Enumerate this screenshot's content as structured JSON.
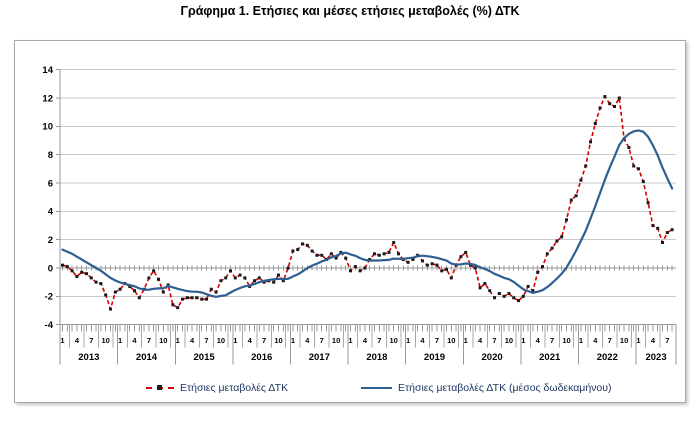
{
  "page": {
    "title": "Γράφημα 1. Ετήσιες και μέσες ετήσιες μεταβολές (%) ΔΤΚ"
  },
  "chart_data": {
    "type": "line",
    "title": "Γράφημα 1. Ετήσιες και μέσες ετήσιες μεταβολές (%) ΔΤΚ",
    "x_axis": {
      "start": "2013-01",
      "end": "2023-08",
      "years": [
        "2013",
        "2014",
        "2015",
        "2016",
        "2017",
        "2018",
        "2019",
        "2020",
        "2021",
        "2022",
        "2023"
      ],
      "month_tick_labels": [
        "1",
        "4",
        "7",
        "10"
      ],
      "months_per_year": 12
    },
    "y_axis": {
      "min": -4,
      "max": 14,
      "step": 2
    },
    "grid": true,
    "legend_position": "bottom",
    "colors": {
      "annual_line": "#d40000",
      "annual_marker": "#1a1a1a",
      "average_line": "#2e5f92",
      "gridline": "#c9c9c9",
      "axis": "#9a9a9a",
      "separator": "#a8a8a8",
      "label_text": "#000000",
      "legend_text": "#1f3864"
    },
    "series": [
      {
        "name": "Ετήσιες μεταβολές ΔΤΚ",
        "line_style": "dashed",
        "marker": "square",
        "values": [
          0.2,
          0.1,
          -0.2,
          -0.6,
          -0.3,
          -0.4,
          -0.7,
          -1.0,
          -1.1,
          -1.9,
          -2.9,
          -1.7,
          -1.5,
          -1.1,
          -1.3,
          -1.6,
          -2.1,
          -1.5,
          -0.7,
          -0.2,
          -0.8,
          -1.7,
          -1.2,
          -2.6,
          -2.8,
          -2.2,
          -2.1,
          -2.1,
          -2.1,
          -2.2,
          -2.2,
          -1.5,
          -1.7,
          -0.9,
          -0.7,
          -0.2,
          -0.7,
          -0.5,
          -0.7,
          -1.3,
          -0.9,
          -0.7,
          -1.0,
          -0.9,
          -1.0,
          -0.5,
          -0.9,
          0.0,
          1.2,
          1.3,
          1.7,
          1.6,
          1.2,
          0.9,
          0.9,
          0.6,
          1.0,
          0.7,
          1.1,
          0.7,
          -0.2,
          0.1,
          -0.2,
          0.0,
          0.6,
          1.0,
          0.9,
          1.0,
          1.1,
          1.8,
          1.0,
          0.6,
          0.4,
          0.6,
          0.9,
          0.5,
          0.2,
          0.3,
          0.2,
          -0.2,
          -0.1,
          -0.7,
          0.2,
          0.8,
          1.1,
          0.2,
          0.0,
          -1.4,
          -1.1,
          -1.6,
          -2.1,
          -1.8,
          -2.0,
          -1.8,
          -2.1,
          -2.3,
          -2.0,
          -1.3,
          -1.6,
          -0.3,
          0.1,
          1.0,
          1.4,
          1.9,
          2.2,
          3.4,
          4.8,
          5.1,
          6.2,
          7.2,
          8.9,
          10.2,
          11.3,
          12.1,
          11.6,
          11.4,
          12.0,
          9.1,
          8.5,
          7.2,
          7.0,
          6.1,
          4.6,
          3.0,
          2.8,
          1.8,
          2.5,
          2.7
        ]
      },
      {
        "name": "Ετήσιες μεταβολές ΔΤΚ (μέσος δωδεκαμήνου)",
        "line_style": "solid",
        "marker": "none",
        "values": [
          1.3,
          1.15,
          1.0,
          0.8,
          0.6,
          0.4,
          0.2,
          0.0,
          -0.2,
          -0.45,
          -0.7,
          -0.88,
          -1.02,
          -1.12,
          -1.21,
          -1.29,
          -1.44,
          -1.53,
          -1.53,
          -1.47,
          -1.44,
          -1.43,
          -1.28,
          -1.36,
          -1.47,
          -1.56,
          -1.63,
          -1.67,
          -1.67,
          -1.73,
          -1.85,
          -1.96,
          -2.03,
          -1.97,
          -1.93,
          -1.73,
          -1.55,
          -1.41,
          -1.29,
          -1.23,
          -1.13,
          -1.0,
          -0.9,
          -0.85,
          -0.79,
          -0.76,
          -0.78,
          -0.76,
          -0.6,
          -0.45,
          -0.25,
          -0.01,
          0.17,
          0.3,
          0.46,
          0.58,
          0.75,
          0.85,
          1.02,
          1.08,
          0.96,
          0.86,
          0.7,
          0.57,
          0.52,
          0.53,
          0.53,
          0.56,
          0.57,
          0.66,
          0.65,
          0.64,
          0.69,
          0.73,
          0.83,
          0.87,
          0.83,
          0.78,
          0.72,
          0.62,
          0.52,
          0.31,
          0.24,
          0.26,
          0.32,
          0.28,
          0.21,
          0.05,
          -0.06,
          -0.22,
          -0.41,
          -0.54,
          -0.7,
          -0.79,
          -0.98,
          -1.24,
          -1.5,
          -1.63,
          -1.76,
          -1.67,
          -1.57,
          -1.35,
          -1.06,
          -0.75,
          -0.4,
          0.03,
          0.61,
          1.23,
          1.91,
          2.62,
          3.49,
          4.37,
          5.3,
          6.23,
          7.08,
          7.87,
          8.68,
          9.16,
          9.47,
          9.64,
          9.71,
          9.62,
          9.26,
          8.66,
          7.95,
          7.09,
          6.33,
          5.61
        ]
      }
    ]
  }
}
